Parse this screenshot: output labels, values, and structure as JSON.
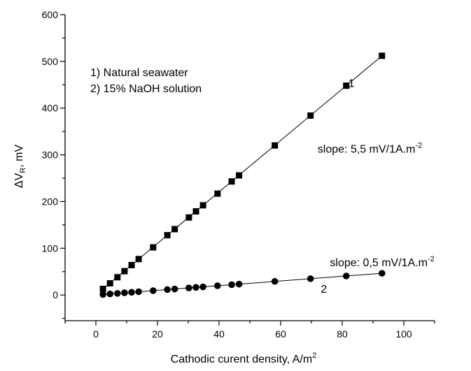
{
  "chart_data": {
    "type": "scatter",
    "title": "",
    "xlabel": "Cathodic curent density, A/m",
    "xlabel_sup": "2",
    "ylabel_main": "ΔV",
    "ylabel_sub": "R",
    "ylabel_tail": ", mV",
    "xlim": [
      -10,
      110
    ],
    "ylim": [
      -55,
      600
    ],
    "x_ticks": [
      0,
      20,
      40,
      60,
      80,
      100
    ],
    "y_ticks": [
      0,
      100,
      200,
      300,
      400,
      500,
      600
    ],
    "legend": {
      "placement": "top-left",
      "entries": [
        "1) Natural seawater",
        "2) 15% NaOH solution"
      ]
    },
    "series": [
      {
        "name": "1",
        "marker": "square",
        "x": [
          2.3,
          4.6,
          7.0,
          9.3,
          11.6,
          13.9,
          18.6,
          23.2,
          25.6,
          30.2,
          32.5,
          34.8,
          39.5,
          44.1,
          46.5,
          58.1,
          69.7,
          81.3,
          92.9
        ],
        "y": [
          13,
          25,
          38,
          51,
          64,
          77,
          102,
          128,
          141,
          166,
          179,
          192,
          217,
          243,
          256,
          320,
          384,
          448,
          512
        ],
        "fit": {
          "x": [
            2.3,
            92.9
          ],
          "y": [
            13,
            512
          ]
        }
      },
      {
        "name": "2",
        "marker": "circle",
        "x": [
          2.3,
          4.6,
          7.0,
          9.3,
          11.6,
          13.9,
          18.6,
          23.2,
          25.6,
          30.2,
          32.5,
          34.8,
          39.5,
          44.1,
          46.5,
          58.1,
          69.7,
          81.3,
          92.9
        ],
        "y": [
          1.2,
          2.3,
          3.5,
          4.7,
          5.8,
          7.0,
          9.3,
          11.6,
          12.8,
          15.1,
          16.3,
          17.4,
          19.8,
          22.1,
          23.3,
          29.1,
          34.9,
          40.7,
          46.5
        ],
        "fit": {
          "x": [
            2.3,
            92.9
          ],
          "y": [
            1.2,
            46.5
          ]
        }
      }
    ],
    "annotations": [
      {
        "id": "label1",
        "text": "1",
        "x": 82,
        "y": 445
      },
      {
        "id": "label2",
        "text": "2",
        "x": 73,
        "y": 5
      },
      {
        "id": "slope1",
        "text": "slope: 5,5 mV/1A.m",
        "sup": "-2",
        "x": 72,
        "y": 305
      },
      {
        "id": "slope2",
        "text": "slope: 0,5 mV/1A.m",
        "sup": "-2",
        "x": 76,
        "y": 62
      }
    ]
  }
}
